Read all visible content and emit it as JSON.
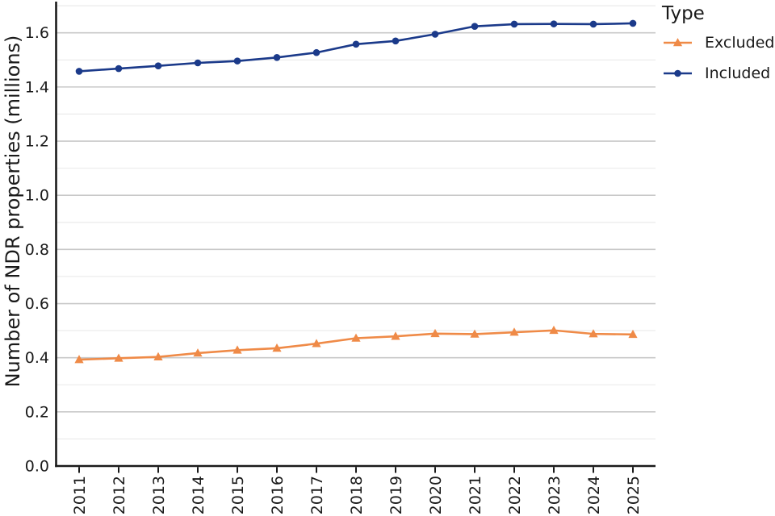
{
  "chart_data": {
    "type": "line",
    "title": "",
    "xlabel": "",
    "ylabel": "Number of NDR properties (millions)",
    "legend_title": "Type",
    "legend_position": "right",
    "grid": "horizontal-major-and-minor",
    "ylim": [
      0.0,
      1.715
    ],
    "y_ticks": [
      "0.0",
      "0.2",
      "0.4",
      "0.6",
      "0.8",
      "1.0",
      "1.2",
      "1.4",
      "1.6"
    ],
    "categories": [
      "2011",
      "2012",
      "2013",
      "2014",
      "2015",
      "2016",
      "2017",
      "2018",
      "2019",
      "2020",
      "2021",
      "2022",
      "2023",
      "2024",
      "2025"
    ],
    "series": [
      {
        "name": "Excluded",
        "marker": "triangle",
        "color": "#ef8a47",
        "values": [
          0.393,
          0.398,
          0.403,
          0.417,
          0.428,
          0.435,
          0.452,
          0.472,
          0.479,
          0.489,
          0.487,
          0.494,
          0.501,
          0.488,
          0.486
        ]
      },
      {
        "name": "Included",
        "marker": "circle",
        "color": "#1b3a8a",
        "values": [
          1.458,
          1.468,
          1.478,
          1.489,
          1.496,
          1.509,
          1.527,
          1.558,
          1.57,
          1.595,
          1.624,
          1.632,
          1.633,
          1.632,
          1.635
        ]
      }
    ],
    "colors": {
      "grid_major": "#c9c9c9",
      "grid_minor": "#e9e9e9",
      "axis": "#1a1a1a",
      "text": "#1a1a1a",
      "background": "#ffffff"
    }
  }
}
